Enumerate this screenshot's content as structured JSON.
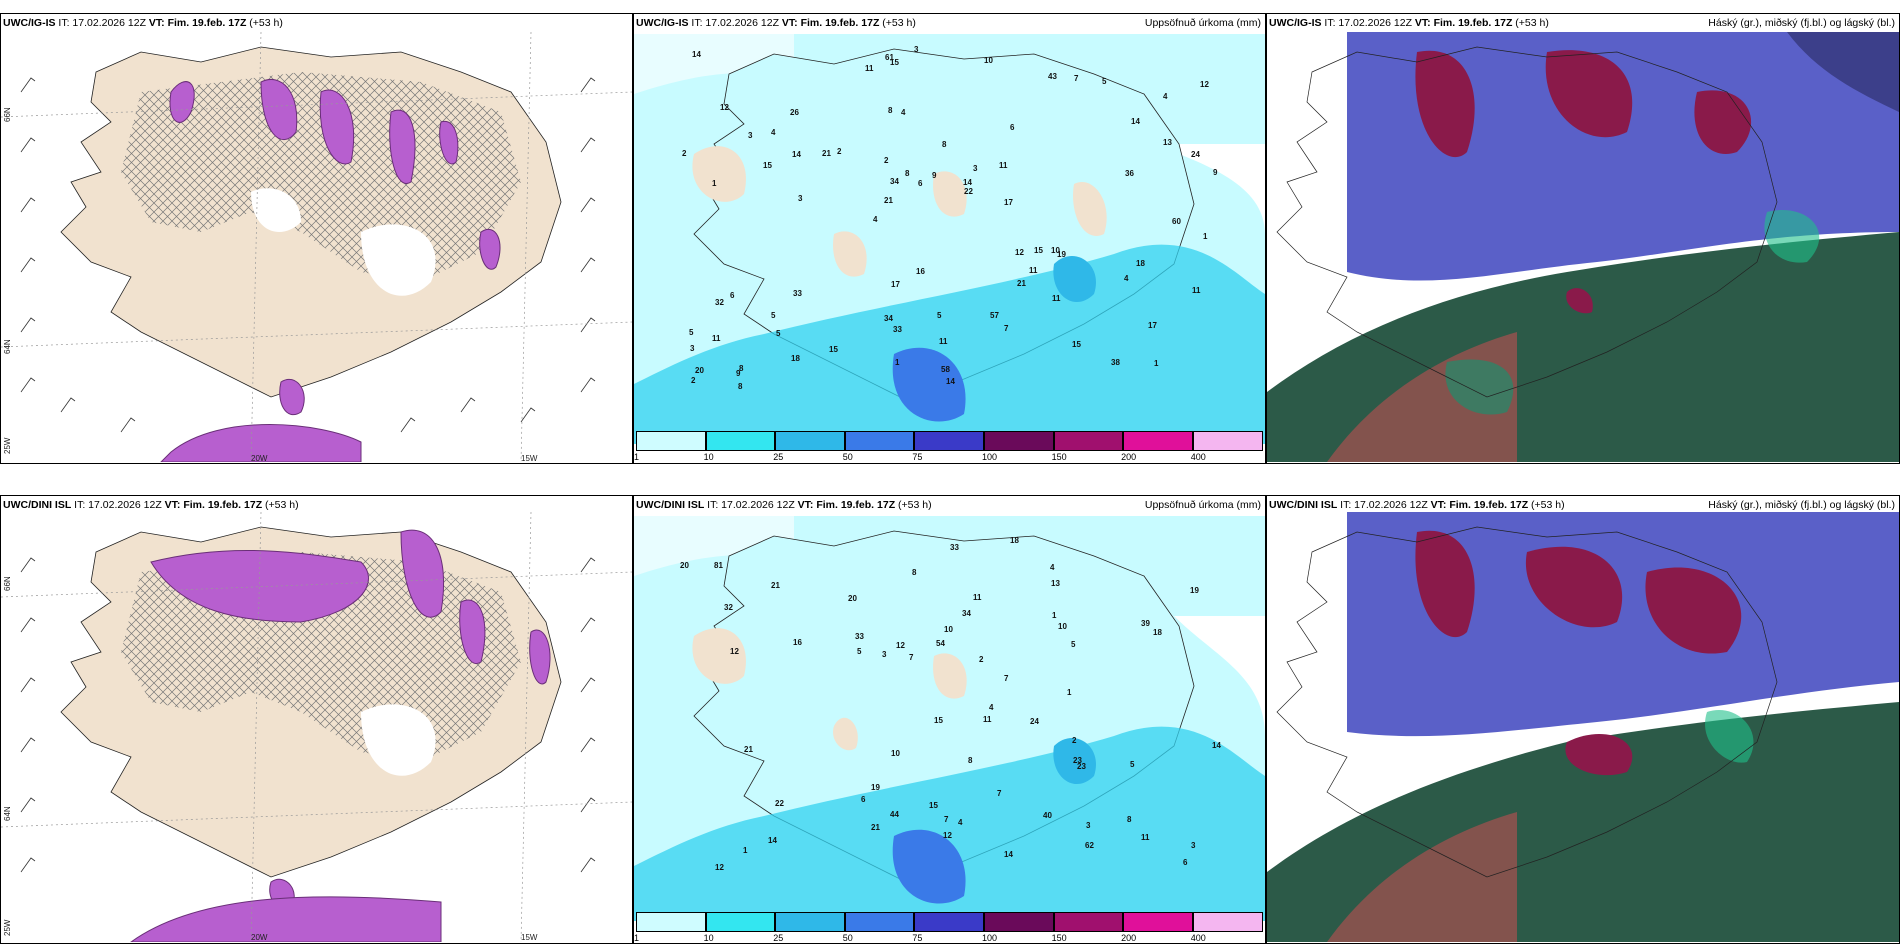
{
  "panels": [
    {
      "id": "tl",
      "model": "UWC/IG-IS",
      "it": "IT: 17.02.2026 12Z",
      "vt": "VT: Fim. 19.feb. 17Z",
      "lead": "(+53 h)",
      "right": ""
    },
    {
      "id": "tm",
      "model": "UWC/IG-IS",
      "it": "IT: 17.02.2026 12Z",
      "vt": "VT: Fim. 19.feb. 17Z",
      "lead": "(+53 h)",
      "right": "Uppsöfnuð úrkoma (mm)"
    },
    {
      "id": "tr",
      "model": "UWC/IG-IS",
      "it": "IT: 17.02.2026 12Z",
      "vt": "VT: Fim. 19.feb. 17Z",
      "lead": "(+53 h)",
      "right": "Háský (gr.), miðský (fj.bl.) og lágský (bl.)"
    },
    {
      "id": "bl",
      "model": "UWC/DINI ISL",
      "it": "IT: 17.02.2026 12Z",
      "vt": "VT: Fim. 19.feb. 17Z",
      "lead": "(+53 h)",
      "right": ""
    },
    {
      "id": "bm",
      "model": "UWC/DINI ISL",
      "it": "IT: 17.02.2026 12Z",
      "vt": "VT: Fim. 19.feb. 17Z",
      "lead": "(+53 h)",
      "right": "Uppsöfnuð úrkoma (mm)"
    },
    {
      "id": "br",
      "model": "UWC/DINI ISL",
      "it": "IT: 17.02.2026 12Z",
      "vt": "VT: Fim. 19.feb. 17Z",
      "lead": "(+53 h)",
      "right": "Háský (gr.), miðský (fj.bl.) og lágský (bl.)"
    }
  ],
  "colorbar": {
    "ticks": [
      "1",
      "10",
      "25",
      "50",
      "75",
      "100",
      "150",
      "200",
      "400"
    ],
    "colors": [
      "#cffcff",
      "#33e6f0",
      "#2fb8e8",
      "#3a7ae8",
      "#3a3ac8",
      "#6a0a5a",
      "#a0106e",
      "#e0109a",
      "#f4b6f0"
    ]
  },
  "axis_labels": {
    "lat66": "66N",
    "lat64": "64N",
    "lon25": "25W",
    "lon20": "20W",
    "lon15": "15W"
  },
  "precip_values_top": [
    "1",
    "1",
    "4",
    "4",
    "6",
    "8",
    "8",
    "8",
    "6",
    "2",
    "3",
    "5",
    "4",
    "3",
    "19",
    "12",
    "15",
    "9",
    "12",
    "13",
    "21",
    "34",
    "34",
    "26",
    "43",
    "33",
    "38",
    "17",
    "10",
    "14",
    "21",
    "15",
    "21",
    "18",
    "24",
    "14",
    "20",
    "33",
    "22",
    "32",
    "14",
    "12",
    "11",
    "7",
    "5",
    "8",
    "2",
    "5",
    "5",
    "3",
    "3",
    "2",
    "4",
    "7",
    "9",
    "10",
    "11",
    "8",
    "11",
    "17",
    "15",
    "15",
    "14",
    "5",
    "14",
    "3",
    "1",
    "2",
    "11",
    "9",
    "11",
    "17",
    "18",
    "1",
    "36",
    "16",
    "15",
    "58",
    "57",
    "61",
    "60",
    "11",
    "11",
    "6",
    "4"
  ],
  "precip_values_bottom": [
    "1",
    "5",
    "4",
    "8",
    "8",
    "18",
    "8",
    "4",
    "3",
    "6",
    "6",
    "5",
    "44",
    "33",
    "40",
    "33",
    "23",
    "21",
    "15",
    "19",
    "20",
    "14",
    "12",
    "24",
    "23",
    "13",
    "12",
    "34",
    "18",
    "7",
    "11",
    "10",
    "11",
    "12",
    "11",
    "14",
    "7",
    "5",
    "12",
    "15",
    "16",
    "19",
    "20",
    "21",
    "1",
    "3",
    "10",
    "4",
    "14",
    "3",
    "32",
    "54",
    "81",
    "62",
    "22",
    "21",
    "39",
    "7",
    "7",
    "2",
    "2",
    "1",
    "10"
  ]
}
